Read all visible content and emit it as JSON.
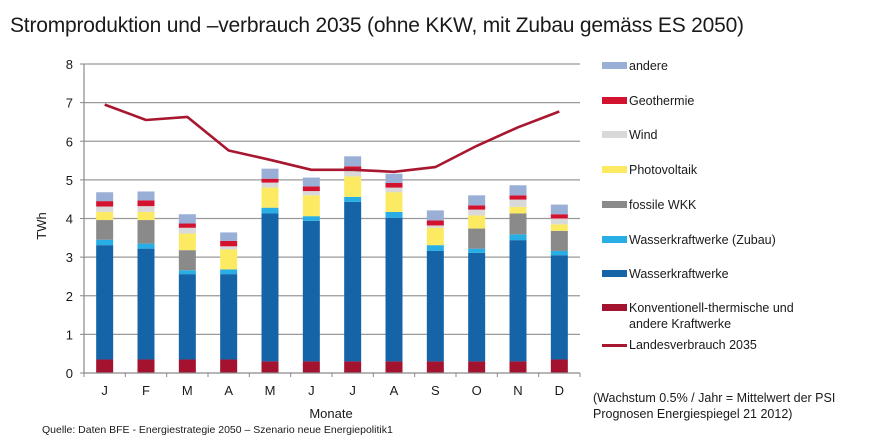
{
  "title": "Stromproduktion und –verbrauch 2035 (ohne KKW, mit Zubau gemäss ES 2050)",
  "source": "Quelle: Daten BFE -  Energiestrategie 2050 – Szenario neue Energiepolitik1",
  "note_lines": [
    "(Wachstum 0.5% / Jahr = Mittelwert der PSI",
    "Prognosen Energiespiegel 21 2012)"
  ],
  "chart_data": {
    "type": "bar",
    "stacked": true,
    "title": "Stromproduktion und –verbrauch 2035 (ohne KKW, mit Zubau gemäss ES 2050)",
    "xlabel": "Monate",
    "ylabel": "TWh",
    "ylim": [
      0,
      8
    ],
    "yticks": [
      "0",
      "1",
      "2",
      "3",
      "4",
      "5",
      "6",
      "7",
      "8"
    ],
    "grid": true,
    "legend_position": "right",
    "categories": [
      "J",
      "F",
      "M",
      "A",
      "M",
      "J",
      "J",
      "A",
      "S",
      "O",
      "N",
      "D"
    ],
    "series": [
      {
        "name": "Konventionell-thermische und andere Kraftwerke",
        "color": "#a3122f",
        "values": [
          0.35,
          0.35,
          0.35,
          0.35,
          0.3,
          0.3,
          0.3,
          0.3,
          0.3,
          0.3,
          0.3,
          0.35
        ]
      },
      {
        "name": "Wasserkraftwerke",
        "color": "#1564a8",
        "values": [
          2.96,
          2.87,
          2.21,
          2.21,
          3.83,
          3.64,
          4.13,
          3.72,
          2.86,
          2.81,
          3.14,
          2.7
        ]
      },
      {
        "name": "Wasserkraftwerke (Zubau)",
        "color": "#28aee4",
        "values": [
          0.14,
          0.13,
          0.1,
          0.12,
          0.15,
          0.12,
          0.13,
          0.15,
          0.15,
          0.11,
          0.15,
          0.11
        ]
      },
      {
        "name": "fossile WKK",
        "color": "#8a8a8a",
        "values": [
          0.51,
          0.61,
          0.52,
          0.0,
          0.0,
          0.0,
          0.0,
          0.0,
          0.0,
          0.52,
          0.54,
          0.52
        ]
      },
      {
        "name": "Photovoltaik",
        "color": "#fbea62",
        "values": [
          0.21,
          0.21,
          0.43,
          0.52,
          0.52,
          0.54,
          0.53,
          0.51,
          0.45,
          0.34,
          0.17,
          0.17
        ]
      },
      {
        "name": "Wind",
        "color": "#d9d9d9",
        "values": [
          0.14,
          0.15,
          0.15,
          0.08,
          0.13,
          0.11,
          0.17,
          0.12,
          0.06,
          0.15,
          0.19,
          0.15
        ]
      },
      {
        "name": "Geothermie",
        "color": "#d2122e",
        "values": [
          0.14,
          0.15,
          0.11,
          0.14,
          0.1,
          0.12,
          0.09,
          0.12,
          0.13,
          0.11,
          0.11,
          0.11
        ]
      },
      {
        "name": "andere",
        "color": "#9aafd6",
        "values": [
          0.23,
          0.23,
          0.24,
          0.22,
          0.26,
          0.23,
          0.26,
          0.24,
          0.26,
          0.26,
          0.26,
          0.25
        ]
      }
    ],
    "line_series": {
      "name": "Landesverbrauch 2035",
      "color": "#a8172f",
      "values": [
        6.95,
        6.55,
        6.63,
        5.76,
        5.52,
        5.26,
        5.26,
        5.21,
        5.33,
        5.88,
        6.36,
        6.77
      ]
    },
    "legend": [
      {
        "label": "andere",
        "color": "#9aafd6",
        "kind": "bar"
      },
      {
        "label": "Geothermie",
        "color": "#d2122e",
        "kind": "bar"
      },
      {
        "label": "Wind",
        "color": "#d9d9d9",
        "kind": "bar"
      },
      {
        "label": "Photovoltaik",
        "color": "#fbea62",
        "kind": "bar"
      },
      {
        "label": "fossile WKK",
        "color": "#8a8a8a",
        "kind": "bar"
      },
      {
        "label": "Wasserkraftwerke (Zubau)",
        "color": "#28aee4",
        "kind": "bar"
      },
      {
        "label": "Wasserkraftwerke",
        "color": "#1564a8",
        "kind": "bar"
      },
      {
        "label": "Konventionell-thermische und\nandere Kraftwerke",
        "color": "#a3122f",
        "kind": "bar"
      },
      {
        "label": "Landesverbrauch 2035",
        "color": "#a8172f",
        "kind": "line"
      }
    ]
  }
}
